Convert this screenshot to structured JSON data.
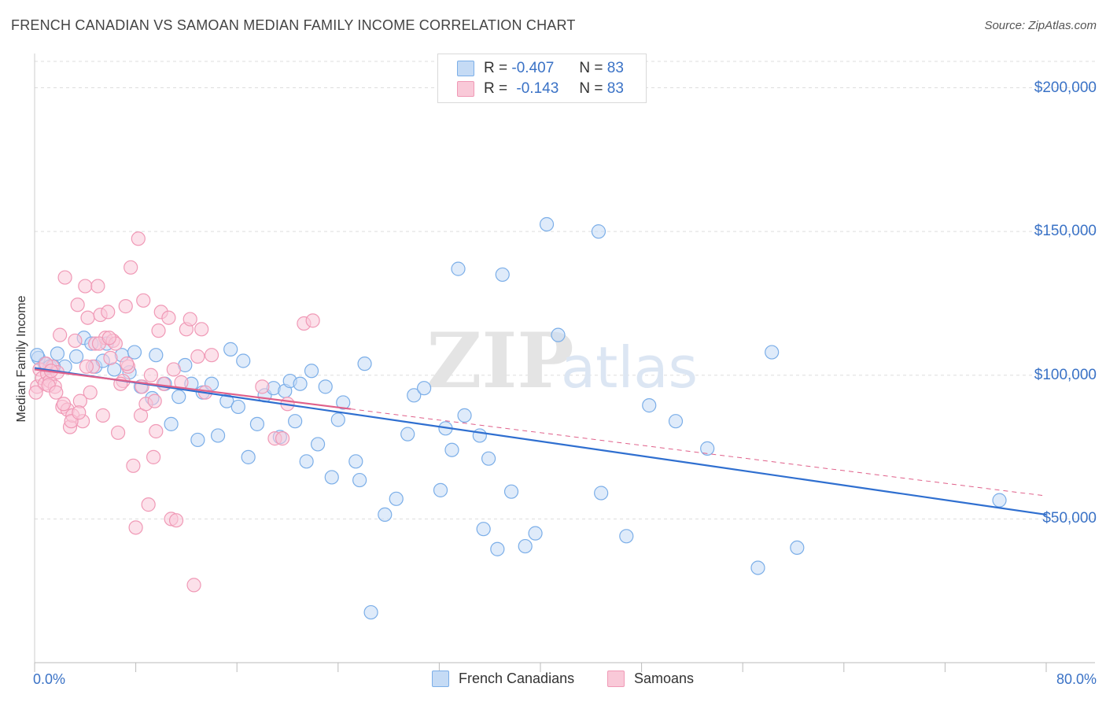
{
  "chart_data": {
    "type": "scatter",
    "title": "FRENCH CANADIAN VS SAMOAN MEDIAN FAMILY INCOME CORRELATION CHART",
    "source": "Source: ZipAtlas.com",
    "ylabel": "Median Family Income",
    "xlim": [
      0,
      80
    ],
    "ylim": [
      0,
      210000
    ],
    "x_tick_labels": [
      "0.0%",
      "80.0%"
    ],
    "y_ticks": [
      {
        "value": 50000,
        "label": "$50,000"
      },
      {
        "value": 100000,
        "label": "$100,000"
      },
      {
        "value": 150000,
        "label": "$150,000"
      },
      {
        "value": 200000,
        "label": "$200,000"
      }
    ],
    "watermark": "ZIPatlas",
    "legend": {
      "rows": [
        {
          "r_label": "R =",
          "r_value": "-0.407",
          "n_label": "N =",
          "n_value": "83"
        },
        {
          "r_label": "R =",
          "r_value": "-0.143",
          "n_label": "N =",
          "n_value": "83"
        }
      ]
    },
    "series": [
      {
        "name": "French Canadians",
        "color": "#7baee8",
        "fill": "#c5dbf5",
        "trend": {
          "x1": 0,
          "y1": 102500,
          "x2": 80,
          "y2": 51500
        },
        "points": [
          [
            0.3,
            106000
          ],
          [
            0.8,
            104000
          ],
          [
            1.2,
            103000
          ],
          [
            1.8,
            107500
          ],
          [
            2.4,
            103000
          ],
          [
            3.3,
            106500
          ],
          [
            3.9,
            113000
          ],
          [
            4.5,
            111000
          ],
          [
            4.8,
            103000
          ],
          [
            5.4,
            105000
          ],
          [
            5.7,
            111000
          ],
          [
            6.3,
            102000
          ],
          [
            6.9,
            107000
          ],
          [
            7.5,
            101000
          ],
          [
            7.9,
            108000
          ],
          [
            8.4,
            96000
          ],
          [
            9.3,
            92000
          ],
          [
            9.6,
            107000
          ],
          [
            10.3,
            97000
          ],
          [
            10.8,
            83000
          ],
          [
            11.4,
            92500
          ],
          [
            11.9,
            103500
          ],
          [
            12.4,
            97000
          ],
          [
            12.9,
            77500
          ],
          [
            13.3,
            94000
          ],
          [
            14.0,
            97000
          ],
          [
            14.5,
            79000
          ],
          [
            15.2,
            91000
          ],
          [
            15.5,
            109000
          ],
          [
            16.1,
            89000
          ],
          [
            16.5,
            105000
          ],
          [
            16.9,
            71500
          ],
          [
            17.6,
            83000
          ],
          [
            18.2,
            93000
          ],
          [
            18.9,
            95500
          ],
          [
            19.4,
            78500
          ],
          [
            19.8,
            94500
          ],
          [
            20.2,
            98000
          ],
          [
            20.6,
            84000
          ],
          [
            21.0,
            97000
          ],
          [
            21.5,
            70000
          ],
          [
            21.9,
            101500
          ],
          [
            22.4,
            76000
          ],
          [
            23.0,
            96000
          ],
          [
            23.5,
            64500
          ],
          [
            24.0,
            84500
          ],
          [
            24.4,
            90500
          ],
          [
            25.4,
            70000
          ],
          [
            25.7,
            63500
          ],
          [
            26.1,
            104000
          ],
          [
            26.6,
            17500
          ],
          [
            27.7,
            51500
          ],
          [
            28.6,
            57000
          ],
          [
            29.5,
            79500
          ],
          [
            30.0,
            93000
          ],
          [
            30.8,
            95500
          ],
          [
            32.1,
            60000
          ],
          [
            32.5,
            81500
          ],
          [
            33.0,
            74000
          ],
          [
            33.5,
            137000
          ],
          [
            34.0,
            86000
          ],
          [
            35.2,
            79000
          ],
          [
            35.5,
            46500
          ],
          [
            35.9,
            71000
          ],
          [
            36.6,
            39500
          ],
          [
            37.0,
            135000
          ],
          [
            37.7,
            59500
          ],
          [
            38.8,
            40500
          ],
          [
            39.6,
            45000
          ],
          [
            40.5,
            152500
          ],
          [
            41.4,
            114000
          ],
          [
            44.6,
            150000
          ],
          [
            44.8,
            59000
          ],
          [
            46.8,
            44000
          ],
          [
            48.6,
            89500
          ],
          [
            50.7,
            84000
          ],
          [
            53.2,
            74500
          ],
          [
            57.2,
            33000
          ],
          [
            58.3,
            108000
          ],
          [
            60.3,
            40000
          ],
          [
            76.3,
            56500
          ],
          [
            0.2,
            107000
          ],
          [
            1.5,
            103000
          ]
        ]
      },
      {
        "name": "Samoans",
        "color": "#f099b6",
        "fill": "#f9c9d8",
        "trend": {
          "x1": 0,
          "y1": 102000,
          "x2": 80,
          "y2": 58000,
          "solid_until": 25
        },
        "points": [
          [
            0.2,
            96000
          ],
          [
            0.4,
            102000
          ],
          [
            0.6,
            99000
          ],
          [
            0.8,
            97000
          ],
          [
            1.0,
            100500
          ],
          [
            1.2,
            98000
          ],
          [
            1.4,
            103000
          ],
          [
            1.6,
            96000
          ],
          [
            1.8,
            101000
          ],
          [
            2.0,
            114000
          ],
          [
            2.2,
            89000
          ],
          [
            2.4,
            134000
          ],
          [
            2.6,
            88000
          ],
          [
            2.8,
            82000
          ],
          [
            3.0,
            86000
          ],
          [
            3.2,
            112000
          ],
          [
            3.4,
            124500
          ],
          [
            3.6,
            91000
          ],
          [
            3.8,
            84000
          ],
          [
            4.0,
            131000
          ],
          [
            4.2,
            120000
          ],
          [
            4.4,
            94000
          ],
          [
            4.6,
            103000
          ],
          [
            4.8,
            111000
          ],
          [
            5.0,
            131000
          ],
          [
            5.2,
            121000
          ],
          [
            5.4,
            86000
          ],
          [
            5.6,
            113000
          ],
          [
            5.8,
            122000
          ],
          [
            6.0,
            106000
          ],
          [
            6.2,
            112000
          ],
          [
            6.4,
            111000
          ],
          [
            6.6,
            80000
          ],
          [
            7.0,
            98000
          ],
          [
            7.2,
            124000
          ],
          [
            7.4,
            103000
          ],
          [
            7.6,
            137500
          ],
          [
            7.8,
            68500
          ],
          [
            8.0,
            47000
          ],
          [
            8.2,
            147500
          ],
          [
            8.4,
            86000
          ],
          [
            8.6,
            126000
          ],
          [
            8.8,
            90000
          ],
          [
            9.0,
            55000
          ],
          [
            9.2,
            100000
          ],
          [
            9.4,
            71500
          ],
          [
            9.6,
            80500
          ],
          [
            9.8,
            115500
          ],
          [
            10.0,
            122000
          ],
          [
            10.2,
            97000
          ],
          [
            10.6,
            120000
          ],
          [
            10.8,
            50000
          ],
          [
            11.0,
            102000
          ],
          [
            11.2,
            49500
          ],
          [
            11.6,
            97500
          ],
          [
            12.0,
            116000
          ],
          [
            12.3,
            119500
          ],
          [
            12.6,
            27000
          ],
          [
            12.9,
            106500
          ],
          [
            13.2,
            116000
          ],
          [
            13.5,
            94000
          ],
          [
            14.0,
            107000
          ],
          [
            18.0,
            96000
          ],
          [
            19.0,
            78000
          ],
          [
            19.6,
            78000
          ],
          [
            20.0,
            90000
          ],
          [
            21.3,
            118000
          ],
          [
            22.0,
            119000
          ],
          [
            0.1,
            94000
          ],
          [
            0.9,
            104000
          ],
          [
            1.1,
            96500
          ],
          [
            1.3,
            101500
          ],
          [
            1.7,
            94000
          ],
          [
            2.3,
            90000
          ],
          [
            2.9,
            84000
          ],
          [
            3.5,
            87000
          ],
          [
            4.1,
            103000
          ],
          [
            5.1,
            111000
          ],
          [
            5.9,
            113000
          ],
          [
            6.8,
            97000
          ],
          [
            7.3,
            104000
          ],
          [
            8.5,
            96000
          ],
          [
            9.5,
            91000
          ]
        ]
      }
    ]
  }
}
